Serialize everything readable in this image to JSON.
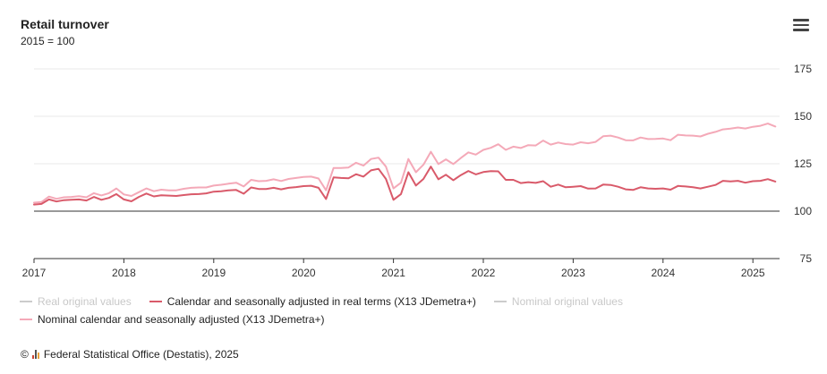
{
  "header": {
    "title": "Retail turnover",
    "subtitle": "2015 = 100"
  },
  "menu": {
    "icon": "hamburger-menu-icon"
  },
  "legend": {
    "items": [
      {
        "label": "Real original values",
        "color": "#cccccc",
        "active": false
      },
      {
        "label": "Calendar and seasonally adjusted in real terms (X13 JDemetra+)",
        "color": "#d95a6a",
        "active": true
      },
      {
        "label": "Nominal original values",
        "color": "#cccccc",
        "active": false
      },
      {
        "label": "Nominal calendar and seasonally adjusted (X13 JDemetra+)",
        "color": "#f4a9b8",
        "active": true
      }
    ]
  },
  "footer": {
    "prefix": "©",
    "text": "Federal Statistical Office (Destatis), 2025",
    "logo_colors": [
      "#c43",
      "#555",
      "#e9a23b"
    ]
  },
  "chart_data": {
    "type": "line",
    "title": "Retail turnover",
    "subtitle": "2015 = 100",
    "x_start": "2017-01",
    "x_ticks": [
      "2017",
      "2018",
      "2019",
      "2020",
      "2021",
      "2022",
      "2023",
      "2024",
      "2025"
    ],
    "y_ticks": [
      75,
      100,
      125,
      150,
      175
    ],
    "ylim": [
      75,
      175
    ],
    "reference_line": 100,
    "grid": true,
    "y_axis_position": "right",
    "series": [
      {
        "name": "Calendar and seasonally adjusted in real terms (X13 JDemetra+)",
        "color": "#d95a6a",
        "values": [
          103.5,
          103.8,
          106.2,
          105.1,
          105.8,
          106.0,
          106.2,
          105.6,
          107.5,
          106.0,
          107.0,
          109.0,
          106.2,
          105.2,
          107.5,
          109.3,
          107.8,
          108.4,
          108.2,
          108.0,
          108.5,
          108.9,
          109.0,
          109.4,
          110.3,
          110.5,
          111.0,
          111.2,
          109.2,
          112.5,
          111.7,
          111.7,
          112.3,
          111.5,
          112.3,
          112.7,
          113.2,
          113.4,
          112.3,
          106.4,
          117.8,
          117.5,
          117.3,
          119.5,
          118.2,
          121.5,
          122.3,
          117.0,
          106.0,
          109.0,
          120.5,
          113.5,
          117.0,
          123.5,
          116.8,
          119.2,
          116.3,
          119.0,
          121.2,
          119.4,
          120.6,
          121.1,
          121.0,
          116.5,
          116.5,
          114.8,
          115.3,
          114.9,
          115.8,
          112.9,
          114.0,
          112.6,
          112.9,
          113.2,
          111.9,
          112.0,
          114.0,
          113.8,
          112.9,
          111.5,
          111.2,
          112.6,
          112.0,
          111.8,
          112.0,
          111.3,
          113.3,
          113.0,
          112.6,
          112.0,
          112.9,
          113.8,
          116.0,
          115.7,
          116.0,
          115.0,
          115.8,
          116.0,
          116.9,
          115.6
        ]
      },
      {
        "name": "Nominal calendar and seasonally adjusted (X13 JDemetra+)",
        "color": "#f4a9b8",
        "values": [
          104.5,
          104.8,
          107.7,
          106.5,
          107.3,
          107.5,
          107.9,
          107.3,
          109.5,
          108.3,
          109.5,
          112.0,
          108.8,
          108.0,
          110.0,
          112.0,
          110.5,
          111.3,
          111.0,
          111.0,
          111.8,
          112.3,
          112.5,
          112.5,
          113.5,
          113.9,
          114.5,
          115.0,
          113.0,
          116.5,
          115.8,
          116.0,
          116.8,
          115.9,
          117.0,
          117.5,
          118.0,
          118.2,
          117.2,
          111.0,
          122.8,
          122.8,
          123.0,
          125.5,
          124.0,
          127.5,
          128.2,
          123.5,
          112.0,
          115.0,
          127.5,
          120.5,
          124.5,
          131.3,
          124.8,
          127.3,
          124.8,
          128.0,
          131.0,
          129.8,
          132.3,
          133.4,
          135.3,
          132.3,
          134.0,
          133.3,
          134.8,
          134.6,
          137.2,
          135.1,
          136.2,
          135.4,
          135.1,
          136.3,
          135.8,
          136.5,
          139.5,
          139.8,
          138.8,
          137.4,
          137.3,
          138.8,
          138.0,
          138.1,
          138.3,
          137.4,
          140.3,
          139.9,
          139.8,
          139.4,
          140.8,
          141.8,
          143.1,
          143.5,
          144.1,
          143.6,
          144.5,
          145.0,
          146.2,
          144.6
        ]
      }
    ]
  }
}
